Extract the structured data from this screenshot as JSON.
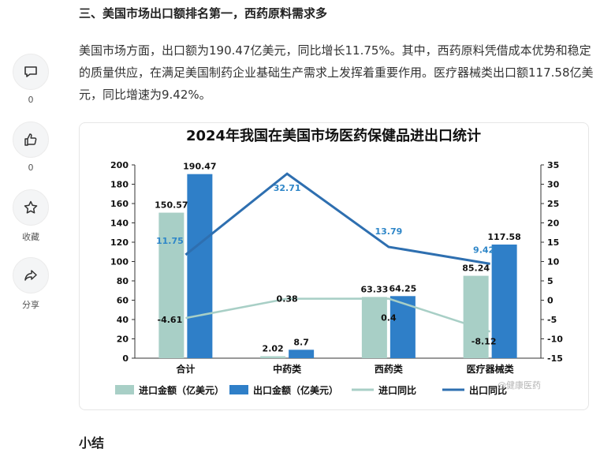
{
  "article": {
    "heading": "三、美国市场出口额排名第一，西药原料需求多",
    "paragraph": "美国市场方面，出口额为190.47亿美元，同比增长11.75%。其中，西药原料凭借成本优势和稳定的质量供应，在满足美国制药企业基础生产需求上发挥着重要作用。医疗器械类出口额117.58亿美元，同比增速为9.42%。",
    "summary_heading": "小结"
  },
  "sidebar": {
    "comment_count": "0",
    "like_count": "0",
    "favorite_label": "收藏",
    "share_label": "分享"
  },
  "watermark": "@健康医药",
  "colors": {
    "import_bar": "#a8cfc6",
    "export_bar": "#2f7fc8",
    "import_line": "#a8cfc6",
    "export_line": "#2e6fb0"
  },
  "chart_data": {
    "type": "bar",
    "title": "2024年我国在美国市场医药保健品进出口统计",
    "categories": [
      "合计",
      "中药类",
      "西药类",
      "医疗器械类"
    ],
    "series": [
      {
        "name": "进口金额（亿美元）",
        "kind": "bar",
        "axis": "left",
        "values": [
          150.57,
          2.02,
          63.33,
          85.24
        ]
      },
      {
        "name": "出口金额（亿美元）",
        "kind": "bar",
        "axis": "left",
        "values": [
          190.47,
          8.7,
          64.25,
          117.58
        ]
      },
      {
        "name": "进口同比",
        "kind": "line",
        "axis": "right",
        "values": [
          -4.61,
          0.38,
          0.4,
          -8.12
        ]
      },
      {
        "name": "出口同比",
        "kind": "line",
        "axis": "right",
        "values": [
          11.75,
          32.71,
          13.79,
          9.42
        ]
      }
    ],
    "ylim_left": [
      0,
      200
    ],
    "yticks_left": [
      0,
      20,
      40,
      60,
      80,
      100,
      120,
      140,
      160,
      180,
      200
    ],
    "ylim_right": [
      -15,
      35
    ],
    "yticks_right": [
      -15,
      -10,
      -5,
      0,
      5,
      10,
      15,
      20,
      25,
      30,
      35
    ],
    "legend_position": "bottom",
    "grid": false
  }
}
